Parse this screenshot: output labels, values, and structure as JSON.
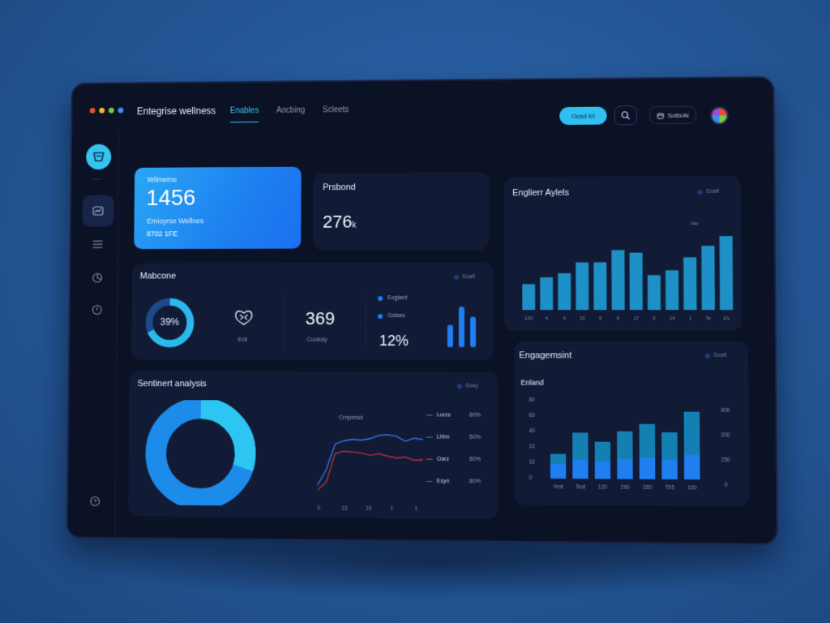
{
  "window": {
    "dots": [
      "#e94b3c",
      "#f2b62c",
      "#7ac943",
      "#3b8ff0"
    ],
    "title": "Entegrise wellness",
    "tabs": [
      {
        "label": "Enables",
        "active": true
      },
      {
        "label": "Aocbing",
        "active": false
      },
      {
        "label": "Scleets",
        "active": false
      }
    ],
    "cta_label": "Ocsd Et",
    "settings_label": "Sotb/Al"
  },
  "colors": {
    "accent": "#30bff0",
    "accent_blue": "#1d80ef",
    "bar_light": "#20a6e0",
    "bar_dark": "#1a6fd6",
    "bar_bright": "#1f7ef0",
    "line_blue": "#2f7bf0",
    "line_red": "#c0303a",
    "panel": "#121b35",
    "frame": "#0b1226"
  },
  "sidebar": {
    "items": [
      {
        "icon": "chart-icon",
        "active": true
      },
      {
        "icon": "list-icon",
        "active": false
      },
      {
        "icon": "pie-icon",
        "active": false
      },
      {
        "icon": "power-icon",
        "active": false
      }
    ],
    "separator": "• • •"
  },
  "hero": {
    "label": "Wilmeme",
    "value": "1456",
    "sub1": "Emioyrse Wellnes",
    "sub2": "8702 1FE"
  },
  "prsbond": {
    "title": "Prsbond",
    "value": "276",
    "unit": "k"
  },
  "mabcone": {
    "title": "Mabcone",
    "chip": "Soalt",
    "donut_percent": "39%",
    "donut_fraction": 0.68,
    "icon_label": "Ecil",
    "metric_value": "369",
    "metric_label": "Coolioty",
    "legend": [
      {
        "label": "Eoglard",
        "color": "#1f7ef0"
      },
      {
        "label": "Golses",
        "color": "#1f7ef0"
      }
    ],
    "percent": "12%",
    "mini_bars": [
      0.55,
      1.0,
      0.75
    ]
  },
  "engagement_top": {
    "title": "Englierr Aylels",
    "chip": "Soalt",
    "annotation": "Ino",
    "chart_data": {
      "type": "bar",
      "categories": [
        "120",
        "4",
        "4",
        "15",
        "5",
        "6",
        "17",
        "5",
        "14",
        "1",
        "Te",
        "1/y"
      ],
      "values": [
        38,
        48,
        54,
        70,
        70,
        88,
        84,
        51,
        58,
        77,
        94,
        108
      ],
      "ylim": [
        0,
        120
      ]
    }
  },
  "engagement_bottom": {
    "title": "Engagemsint",
    "chip": "Soalt",
    "subtitle": "Enland",
    "y_left": [
      "80",
      "60",
      "40",
      "10",
      "10",
      "0"
    ],
    "y_right": [
      "800",
      "200",
      "250",
      "0"
    ],
    "chart_data": {
      "type": "bar",
      "categories": [
        "Yest",
        "Test",
        "120",
        "290",
        "260",
        "T05",
        "100"
      ],
      "series": [
        {
          "values": [
            18,
            23,
            21,
            24,
            26,
            24,
            30
          ]
        },
        {
          "values": [
            12,
            33,
            24,
            34,
            41,
            33,
            52
          ]
        }
      ],
      "ylim": [
        0,
        100
      ]
    }
  },
  "sentiment": {
    "title": "Sentinert analysis",
    "chip": "Soay",
    "donut_fraction": 0.3,
    "line_title": "Crnpimsd",
    "legend": [
      {
        "label": "Lurzs",
        "value": "80%",
        "color": "#2f7bf0"
      },
      {
        "label": "Lhhn",
        "value": "50%",
        "color": "#2f7bf0"
      },
      {
        "label": "Oarz",
        "value": "80%",
        "color": "#c0303a"
      },
      {
        "label": "Esyn",
        "value": "80%",
        "color": "#c0303a"
      }
    ],
    "chart_data": {
      "type": "line",
      "x": [
        0,
        1,
        2,
        3,
        4,
        5,
        6,
        7,
        8,
        9,
        10,
        11,
        12
      ],
      "x_tick_labels": [
        "0",
        "13",
        "10",
        "1",
        "1"
      ],
      "series": [
        {
          "values": [
            10,
            30,
            62,
            66,
            68,
            67,
            69,
            73,
            74,
            72,
            66,
            70,
            68
          ]
        },
        {
          "values": [
            4,
            14,
            50,
            53,
            52,
            51,
            48,
            50,
            47,
            45,
            46,
            42,
            43
          ]
        }
      ],
      "ylim": [
        0,
        90
      ]
    }
  }
}
